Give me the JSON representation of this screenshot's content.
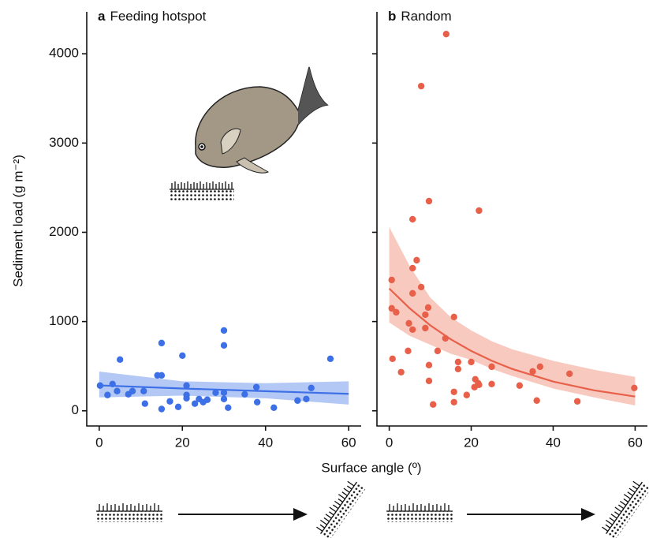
{
  "chart_data": [
    {
      "type": "scatter",
      "panel": "a",
      "title": "Feeding hotspot",
      "y_label": "Sediment load (g m⁻²)",
      "x_label": "Surface angle (º)",
      "color": "#3d70e6",
      "band_color": "#b4c8f6",
      "x": [
        0.2,
        2,
        3.2,
        4.3,
        5,
        7,
        8,
        10.7,
        11,
        14,
        15,
        15,
        15,
        17,
        19,
        20,
        21,
        21,
        21,
        23,
        24,
        25,
        26,
        28,
        30,
        30,
        30,
        30,
        31,
        35,
        37.8,
        38,
        42,
        47.7,
        49.8,
        51,
        55.6
      ],
      "y": [
        283,
        177,
        300,
        221,
        574,
        185,
        221,
        221,
        80,
        397,
        397,
        759,
        20,
        106,
        44,
        618,
        283,
        177,
        141,
        80,
        132,
        97,
        124,
        203,
        900,
        733,
        203,
        132,
        35,
        185,
        265,
        97,
        35,
        115,
        132,
        256,
        583
      ],
      "fit": {
        "x": [
          0,
          20,
          40,
          60
        ],
        "y": [
          285,
          250,
          220,
          190
        ],
        "lower": [
          150,
          170,
          140,
          70
        ],
        "upper": [
          440,
          330,
          310,
          330
        ]
      },
      "xlim": [
        -3,
        63
      ],
      "ylim": [
        -170,
        4470
      ],
      "xticks": [
        0,
        20,
        40,
        60
      ],
      "yticks": [
        0,
        1000,
        2000,
        3000,
        4000
      ]
    },
    {
      "type": "scatter",
      "panel": "b",
      "title": "Random",
      "color": "#e8604a",
      "band_color": "#f8c9bf",
      "x": [
        13.9,
        7.8,
        9.7,
        5.7,
        21.9,
        6.7,
        5.7,
        0.6,
        7.8,
        5.7,
        9.5,
        0.6,
        1.7,
        8.8,
        15.8,
        4.8,
        5.7,
        8.8,
        13.7,
        11.8,
        4.6,
        0.8,
        9.7,
        16.8,
        20,
        16.8,
        2.9,
        25,
        9.7,
        21,
        21.7,
        20.8,
        21.9,
        25,
        18.9,
        15.8,
        15.8,
        10.7,
        31.8,
        35,
        36.8,
        36,
        44,
        45.9,
        59.8
      ],
      "y": [
        4221,
        3638,
        2349,
        2146,
        2243,
        1687,
        1598,
        1466,
        1386,
        1316,
        1157,
        1148,
        1104,
        1077,
        1051,
        980,
        910,
        927,
        812,
        671,
        671,
        583,
        512,
        547,
        547,
        468,
        433,
        494,
        335,
        353,
        309,
        265,
        291,
        300,
        177,
        212,
        97,
        71,
        283,
        441,
        494,
        115,
        415,
        106,
        256
      ],
      "fit": {
        "x": [
          0,
          5,
          10,
          15,
          20,
          25,
          30,
          40,
          50,
          60
        ],
        "y": [
          1370,
          1148,
          958,
          802,
          671,
          561,
          469,
          328,
          229,
          160
        ],
        "lower": [
          990,
          840,
          740,
          640,
          570,
          470,
          390,
          250,
          150,
          60
        ],
        "upper": [
          2060,
          1620,
          1270,
          1050,
          900,
          780,
          690,
          560,
          460,
          380
        ]
      },
      "xlim": [
        -3,
        63
      ],
      "ylim": [
        -170,
        4470
      ],
      "xticks": [
        0,
        20,
        40,
        60
      ],
      "yticks": [
        0,
        1000,
        2000,
        3000,
        4000
      ]
    }
  ]
}
